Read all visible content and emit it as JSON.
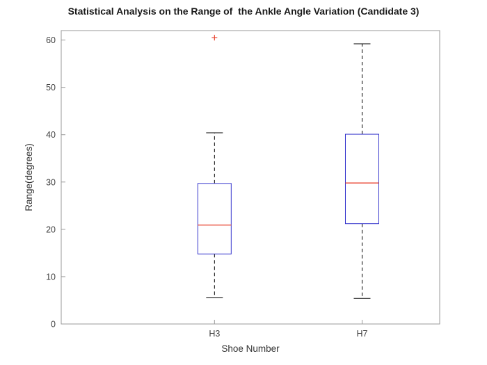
{
  "title": "Statistical Analysis on the Range of  the Ankle Angle Variation (Candidate 3)",
  "chart_data": {
    "type": "boxplot",
    "title": "Statistical Analysis on the Range of  the Ankle Angle Variation (Candidate 3)",
    "xlabel": "Shoe Number",
    "ylabel": "Range(degrees)",
    "categories": [
      "H3",
      "H7"
    ],
    "ylim": [
      0,
      62
    ],
    "yticks": [
      0,
      10,
      20,
      30,
      40,
      50,
      60
    ],
    "grid": false,
    "legend": "none",
    "series": [
      {
        "name": "H3",
        "whisker_low": 5.6,
        "q1": 14.8,
        "median": 20.9,
        "q3": 29.7,
        "whisker_high": 40.4,
        "outliers": [
          60.5
        ]
      },
      {
        "name": "H7",
        "whisker_low": 5.4,
        "q1": 21.2,
        "median": 29.8,
        "q3": 40.1,
        "whisker_high": 59.2,
        "outliers": []
      }
    ],
    "colors": {
      "box": "#3333cc",
      "median": "#e8432f",
      "whisker": "#000000",
      "cap": "#000000",
      "outlier": "#e8432f",
      "axis": "#999999",
      "text": "#404040"
    }
  }
}
